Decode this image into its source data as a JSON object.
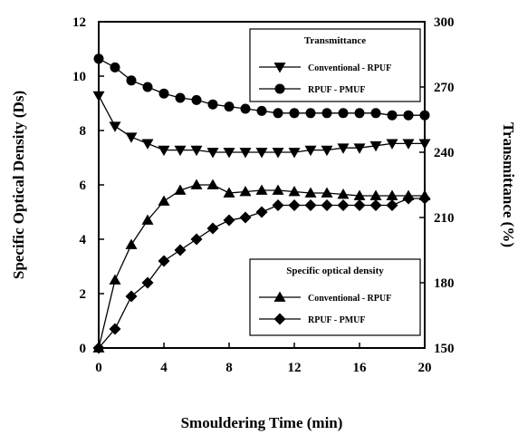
{
  "chart_data": {
    "type": "line",
    "xlabel": "Smouldering Time (min)",
    "ylabel": "Specific Optical Density (Ds)",
    "y2label": "Transmittance (%)",
    "xlim": [
      0,
      20
    ],
    "ylim": [
      0,
      12
    ],
    "y2lim": [
      150,
      300
    ],
    "x_ticks": [
      0,
      4,
      8,
      12,
      16,
      20
    ],
    "y_ticks": [
      0,
      2,
      4,
      6,
      8,
      10,
      12
    ],
    "y2_ticks": [
      150,
      180,
      210,
      240,
      270,
      300
    ],
    "grid": false,
    "legends": [
      {
        "title": "Transmittance",
        "position": "top-right",
        "entries": [
          {
            "label": "Conventional - RPUF",
            "marker": "triangle-down"
          },
          {
            "label": "RPUF - PMUF",
            "marker": "circle"
          }
        ]
      },
      {
        "title": "Specific optical density",
        "position": "bottom-right",
        "entries": [
          {
            "label": "Conventional - RPUF",
            "marker": "triangle-up"
          },
          {
            "label": "RPUF - PMUF",
            "marker": "diamond"
          }
        ]
      }
    ],
    "series": [
      {
        "name": "Conventional - RPUF",
        "axis": "right",
        "marker": "triangle-down",
        "x": [
          0,
          1,
          2,
          3,
          4,
          5,
          6,
          7,
          8,
          9,
          10,
          11,
          12,
          13,
          14,
          15,
          16,
          17,
          18,
          19,
          20
        ],
        "values": [
          266,
          252,
          247,
          244,
          241,
          241,
          241,
          240,
          240,
          240,
          240,
          240,
          240,
          241,
          241,
          242,
          242,
          243,
          244,
          244,
          244
        ]
      },
      {
        "name": "RPUF - PMUF",
        "axis": "right",
        "marker": "circle",
        "x": [
          0,
          1,
          2,
          3,
          4,
          5,
          6,
          7,
          8,
          9,
          10,
          11,
          12,
          13,
          14,
          15,
          16,
          17,
          18,
          19,
          20
        ],
        "values": [
          283,
          279,
          273,
          270,
          267,
          265,
          264,
          262,
          261,
          260,
          259,
          258,
          258,
          258,
          258,
          258,
          258,
          258,
          257,
          257,
          257
        ]
      },
      {
        "name": "Conventional - RPUF",
        "axis": "left",
        "marker": "triangle-up",
        "x": [
          0,
          1,
          2,
          3,
          4,
          5,
          6,
          7,
          8,
          9,
          10,
          11,
          12,
          13,
          14,
          15,
          16,
          17,
          18,
          19,
          20
        ],
        "values": [
          0.0,
          2.5,
          3.8,
          4.7,
          5.4,
          5.8,
          6.0,
          6.0,
          5.7,
          5.75,
          5.8,
          5.8,
          5.75,
          5.7,
          5.7,
          5.65,
          5.6,
          5.6,
          5.6,
          5.6,
          5.6
        ]
      },
      {
        "name": "RPUF - PMUF",
        "axis": "left",
        "marker": "diamond",
        "x": [
          0,
          1,
          2,
          3,
          4,
          5,
          6,
          7,
          8,
          9,
          10,
          11,
          12,
          13,
          14,
          15,
          16,
          17,
          18,
          19,
          20
        ],
        "values": [
          0.0,
          0.7,
          1.9,
          2.4,
          3.2,
          3.6,
          4.0,
          4.4,
          4.7,
          4.8,
          5.0,
          5.25,
          5.25,
          5.25,
          5.25,
          5.25,
          5.25,
          5.25,
          5.25,
          5.5,
          5.5
        ]
      }
    ]
  }
}
